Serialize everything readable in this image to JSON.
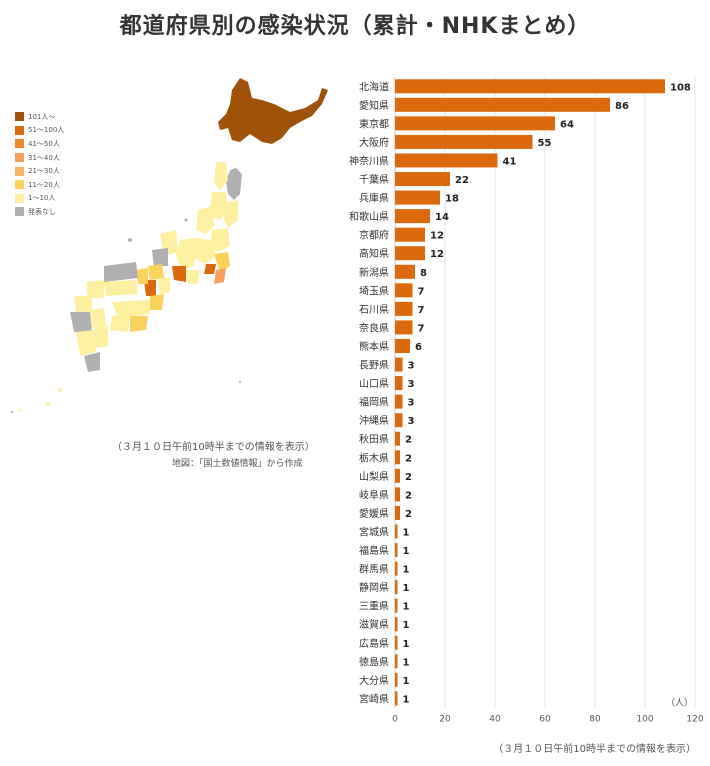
{
  "title": "都道府県別の感染状況（累計・NHKまとめ）",
  "legend": [
    {
      "label": "101人～",
      "color": "#a0520a"
    },
    {
      "label": "51〜100人",
      "color": "#dc6a0d"
    },
    {
      "label": "41〜50人",
      "color": "#ef8a2c"
    },
    {
      "label": "31〜40人",
      "color": "#f4a058"
    },
    {
      "label": "21〜30人",
      "color": "#f8b565"
    },
    {
      "label": "11〜20人",
      "color": "#fbd25c"
    },
    {
      "label": "1〜10人",
      "color": "#fdf0a0"
    },
    {
      "label": "発表なし",
      "color": "#b0b0b0"
    }
  ],
  "map_note": "（３月１０日午前10時半までの情報を表示）",
  "map_source": "地図：「国土数値情報」から作成",
  "chart_note": "（３月１０日午前10時半までの情報を表示）",
  "chart_data": {
    "type": "bar",
    "orientation": "horizontal",
    "categories": [
      "北海道",
      "愛知県",
      "東京都",
      "大阪府",
      "神奈川県",
      "千葉県",
      "兵庫県",
      "和歌山県",
      "京都府",
      "高知県",
      "新潟県",
      "埼玉県",
      "石川県",
      "奈良県",
      "熊本県",
      "長野県",
      "山口県",
      "福岡県",
      "沖縄県",
      "秋田県",
      "栃木県",
      "山梨県",
      "岐阜県",
      "愛媛県",
      "宮城県",
      "福島県",
      "群馬県",
      "静岡県",
      "三重県",
      "滋賀県",
      "広島県",
      "徳島県",
      "大分県",
      "宮崎県"
    ],
    "values": [
      108,
      86,
      64,
      55,
      41,
      22,
      18,
      14,
      12,
      12,
      8,
      7,
      7,
      7,
      6,
      3,
      3,
      3,
      3,
      2,
      2,
      2,
      2,
      2,
      1,
      1,
      1,
      1,
      1,
      1,
      1,
      1,
      1,
      1
    ],
    "unit": "（人）",
    "xlim": [
      0,
      120
    ],
    "xticks": [
      0,
      20,
      40,
      60,
      80,
      100,
      120
    ],
    "bar_color": "#dc6a0d",
    "grid": true
  }
}
